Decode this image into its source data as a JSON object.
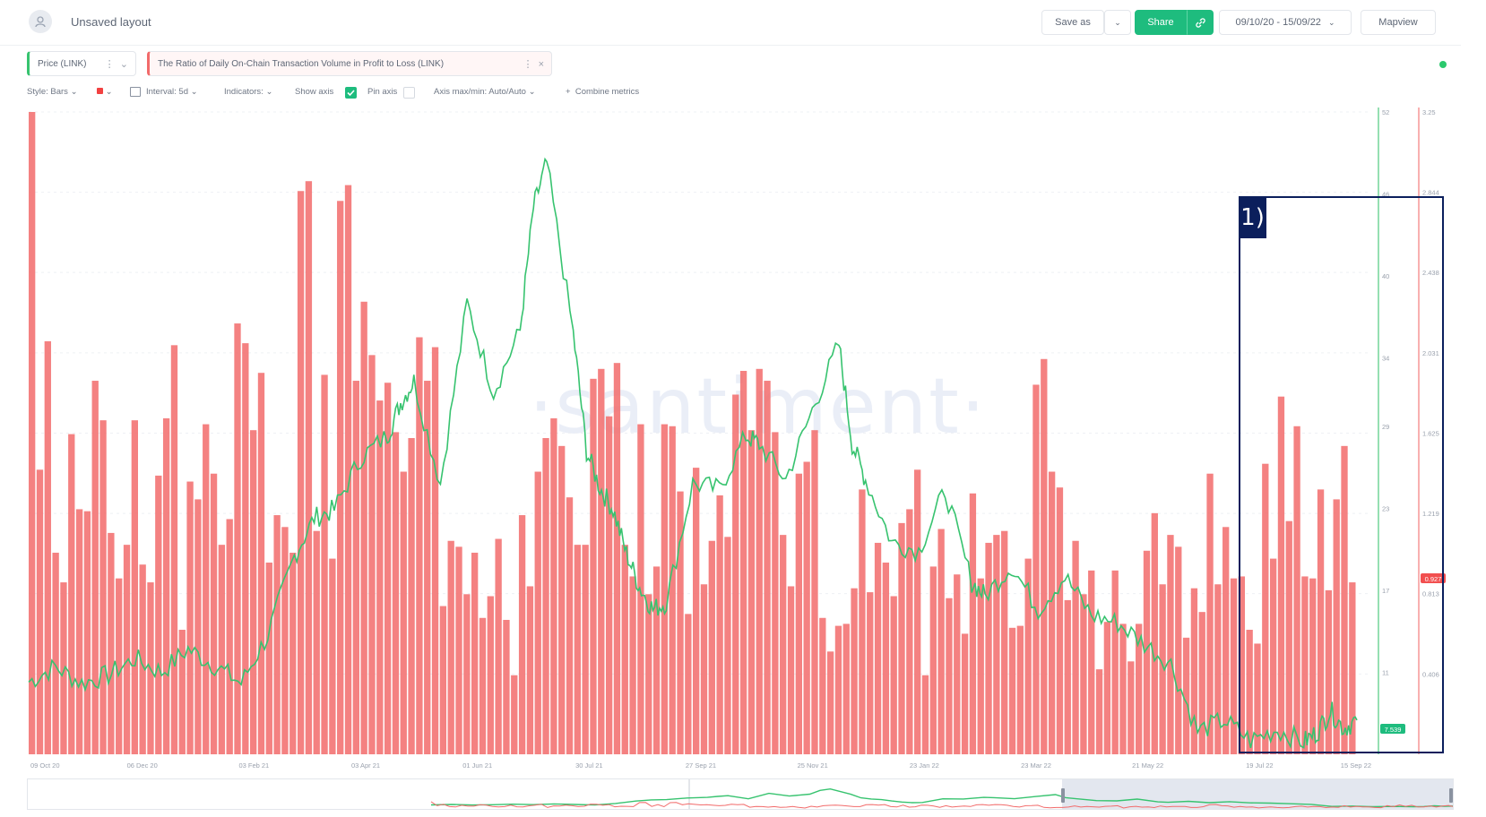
{
  "header": {
    "layout_title": "Unsaved layout",
    "save_label": "Save as",
    "share_label": "Share",
    "date_range": "09/10/20 - 15/09/22",
    "mapview_label": "Mapview"
  },
  "metrics": [
    {
      "label": "Price (LINK)",
      "color": "#37c36f"
    },
    {
      "label": "The Ratio of Daily On-Chain Transaction Volume in Profit to Loss (LINK)",
      "color": "#f26b6b"
    }
  ],
  "toolbar": {
    "style": "Style: Bars",
    "interval": "Interval: 5d",
    "indicators": "Indicators:",
    "show_axis": "Show axis",
    "pin_axis": "Pin axis",
    "axis_minmax": "Axis max/min: Auto/Auto",
    "combine": "Combine metrics"
  },
  "watermark": "·santiment·",
  "annotation": {
    "label": "1)"
  },
  "colors": {
    "price": "#37c36f",
    "ratio": "#f26b6b",
    "accent": "#1ebc7e",
    "annotation": "#0b1f5c"
  },
  "chart_data": {
    "type": "bar",
    "x_tick_labels": [
      "09 Oct 20",
      "06 Dec 20",
      "03 Feb 21",
      "03 Apr 21",
      "01 Jun 21",
      "30 Jul 21",
      "27 Sep 21",
      "25 Nov 21",
      "23 Jan 22",
      "23 Mar 22",
      "21 May 22",
      "19 Jul 22",
      "15 Sep 22"
    ],
    "price_axis": {
      "ticks": [
        "52",
        "46",
        "40",
        "34",
        "29",
        "23",
        "17",
        "11"
      ],
      "ylim": [
        5,
        52
      ],
      "current_label": "7.539"
    },
    "ratio_axis": {
      "ticks": [
        "3.25",
        "2.844",
        "2.438",
        "2.031",
        "1.625",
        "1.219",
        "0.813",
        "0.406"
      ],
      "ylim": [
        0,
        3.25
      ],
      "current_label": "0.927"
    },
    "series": [
      {
        "name": "The Ratio of Daily On-Chain Transaction Volume in Profit to Loss (LINK)",
        "type": "bar",
        "values": [
          3.25,
          1.44,
          2.09,
          1.02,
          0.87,
          1.62,
          1.24,
          1.23,
          1.89,
          1.69,
          1.12,
          0.89,
          1.06,
          1.69,
          0.96,
          0.87,
          1.41,
          1.7,
          2.07,
          0.63,
          1.38,
          1.29,
          1.67,
          1.42,
          1.06,
          1.19,
          2.18,
          2.08,
          1.64,
          1.93,
          0.97,
          1.21,
          1.15,
          1.02,
          2.85,
          2.9,
          1.13,
          1.92,
          0.99,
          2.8,
          2.88,
          1.89,
          2.29,
          2.02,
          1.79,
          1.88,
          1.63,
          1.43,
          1.6,
          2.11,
          1.89,
          2.06,
          0.75,
          1.08,
          1.05,
          0.81,
          1.02,
          0.69,
          0.8,
          1.09,
          0.68,
          0.4,
          1.21,
          0.85,
          1.43,
          1.6,
          1.7,
          1.56,
          1.3,
          1.06,
          1.06,
          1.9,
          1.95,
          1.71,
          1.98,
          1.06,
          0.9,
          1.67,
          0.81,
          0.95,
          1.67,
          1.66,
          1.33,
          0.71,
          1.45,
          0.86,
          1.08,
          1.31,
          1.1,
          1.82,
          1.94,
          1.64,
          1.95,
          1.89,
          1.63,
          1.11,
          0.85,
          1.42,
          1.48,
          1.64,
          0.69,
          0.52,
          0.65,
          0.66,
          0.84,
          1.34,
          0.82,
          1.07,
          0.97,
          0.8,
          1.17,
          1.24,
          1.44,
          0.4,
          0.95,
          1.14,
          0.79,
          0.91,
          0.61,
          1.32,
          0.89,
          1.07,
          1.11,
          1.13,
          0.64,
          0.65,
          0.99,
          1.87,
          2.0,
          1.43,
          1.35,
          0.78,
          1.08,
          0.81,
          0.93,
          0.43,
          0.67,
          0.93,
          0.66,
          0.47,
          0.66,
          1.03,
          1.22,
          0.86,
          1.11,
          1.05,
          0.59,
          0.84,
          0.72,
          1.42,
          0.86,
          1.15,
          0.89,
          0.9,
          0.63,
          0.56,
          1.47,
          0.99,
          1.81,
          1.18,
          1.66,
          0.9,
          0.89,
          1.34,
          0.83,
          1.29,
          1.56,
          0.87
        ]
      },
      {
        "name": "Price (LINK)",
        "type": "line",
        "x_fraction": [
          0.0,
          0.02,
          0.04,
          0.06,
          0.08,
          0.1,
          0.12,
          0.14,
          0.16,
          0.18,
          0.2,
          0.215,
          0.23,
          0.25,
          0.27,
          0.28,
          0.29,
          0.31,
          0.33,
          0.35,
          0.37,
          0.38,
          0.39,
          0.41,
          0.42,
          0.43,
          0.44,
          0.45,
          0.46,
          0.47,
          0.48,
          0.5,
          0.52,
          0.54,
          0.55,
          0.57,
          0.59,
          0.61,
          0.62,
          0.63,
          0.65,
          0.67,
          0.69,
          0.71,
          0.72,
          0.74,
          0.76,
          0.78,
          0.8,
          0.82,
          0.84,
          0.86,
          0.88,
          0.9,
          0.92,
          0.94,
          0.96,
          0.97,
          0.98,
          0.99,
          1.0
        ],
        "values": [
          10.3,
          11.4,
          10.2,
          10.8,
          12.0,
          11.0,
          12.7,
          11.5,
          10.2,
          13.7,
          19.5,
          22.3,
          22.9,
          26.7,
          28.3,
          30.7,
          32.3,
          24.8,
          38.0,
          31.5,
          36.0,
          45.0,
          48.3,
          35.8,
          27.2,
          24.5,
          22.9,
          19.7,
          17.2,
          15.6,
          16.1,
          24.8,
          24.4,
          28.3,
          27.7,
          25.1,
          30.2,
          35.0,
          27.7,
          25.1,
          20.5,
          19.9,
          24.3,
          17.6,
          16.6,
          18.8,
          15.6,
          18.0,
          15.2,
          14.6,
          13.1,
          11.6,
          6.7,
          7.5,
          6.0,
          6.8,
          5.9,
          6.6,
          8.2,
          6.9,
          7.5
        ]
      }
    ],
    "grid": true,
    "legend": "top-left"
  }
}
